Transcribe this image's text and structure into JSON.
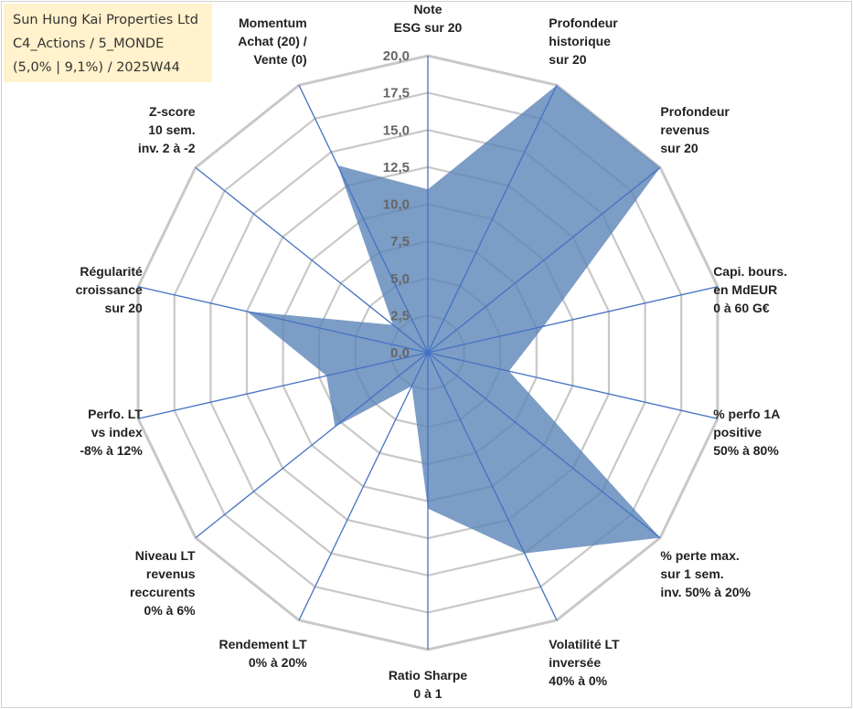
{
  "info": {
    "line1": "Sun Hung Kai Properties Ltd",
    "line2": "C4_Actions / 5_MONDE",
    "line3": "(5,0% | 9,1%) / 2025W44"
  },
  "colors": {
    "fill": "#5b84b7",
    "spoke": "#4472c4",
    "grid": "#c8c8c8",
    "info_bg": "#fff2cc"
  },
  "chart_data": {
    "type": "radar",
    "title": "",
    "rmin": 0,
    "rmax": 20,
    "ticks": [
      "0,0",
      "2,5",
      "5,0",
      "7,5",
      "10,0",
      "12,5",
      "15,0",
      "17,5",
      "20,0"
    ],
    "categories": [
      [
        "Note",
        "ESG sur 20"
      ],
      [
        "Profondeur",
        "historique",
        "sur 20"
      ],
      [
        "Profondeur",
        "revenus",
        "sur 20"
      ],
      [
        "Capi. bours.",
        "en MdEUR",
        "0 à 60 G€"
      ],
      [
        "% perfo 1A",
        "positive",
        "50% à 80%"
      ],
      [
        "% perte max.",
        "sur 1 sem.",
        "inv. 50% à 20%"
      ],
      [
        "Volatilité LT",
        "inversée",
        "40% à 0%"
      ],
      [
        "Ratio Sharpe",
        "0 à 1"
      ],
      [
        "Rendement LT",
        "0% à 20%"
      ],
      [
        "Niveau LT",
        "revenus",
        "reccurents",
        "0% à 6%"
      ],
      [
        "Perfo. LT",
        "vs index",
        "-8% à 12%"
      ],
      [
        "Régularité",
        "croissance",
        "sur 20"
      ],
      [
        "Z-score",
        "10 sem.",
        "inv. 2 à -2"
      ],
      [
        "Momentum",
        "Achat (20) /",
        "Vente (0)"
      ]
    ],
    "series": [
      {
        "values": [
          11,
          20,
          20,
          8,
          5.6,
          20,
          15,
          10.5,
          2.5,
          8,
          7,
          12.5,
          3,
          14
        ]
      }
    ]
  }
}
